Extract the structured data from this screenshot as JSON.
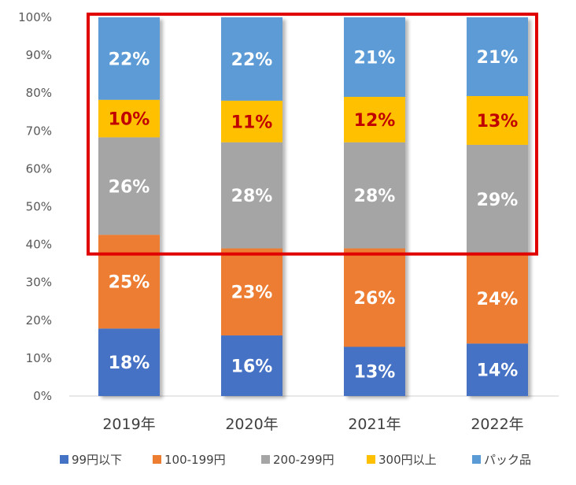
{
  "chart_data": {
    "type": "bar",
    "stacked": true,
    "percent_stacked": true,
    "categories": [
      "2019年",
      "2020年",
      "2021年",
      "2022年"
    ],
    "series": [
      {
        "name": "99円以下",
        "values": [
          18,
          16,
          13,
          14
        ],
        "color": "#4472C4",
        "label_color": "#ffffff"
      },
      {
        "name": "100-199円",
        "values": [
          25,
          23,
          26,
          24
        ],
        "color": "#ED7D31",
        "label_color": "#ffffff"
      },
      {
        "name": "200-299円",
        "values": [
          26,
          28,
          28,
          29
        ],
        "color": "#A5A5A5",
        "label_color": "#ffffff"
      },
      {
        "name": "300円以上",
        "values": [
          10,
          11,
          12,
          13
        ],
        "color": "#FFC000",
        "label_color": "#C00000"
      },
      {
        "name": "パック品",
        "values": [
          22,
          22,
          21,
          21
        ],
        "color": "#5B9BD5",
        "label_color": "#ffffff"
      }
    ],
    "value_suffix": "%",
    "yticks": [
      "0%",
      "10%",
      "20%",
      "30%",
      "40%",
      "50%",
      "60%",
      "70%",
      "80%",
      "90%",
      "100%"
    ],
    "ylim": [
      0,
      100
    ],
    "grid": false,
    "legend_position": "bottom",
    "highlight": {
      "shape": "rectangle",
      "color": "#E00000",
      "y_from": 40,
      "y_to": 100
    }
  }
}
